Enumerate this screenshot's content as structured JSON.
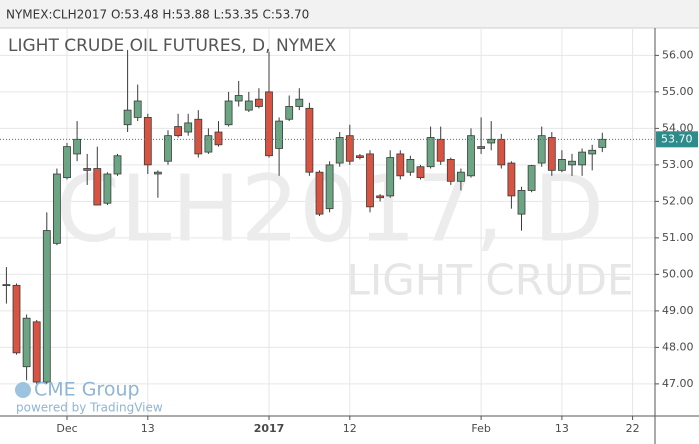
{
  "header": "NYMEX:CLH2017 O:53.48 H:53.88 L:53.35 C:53.70",
  "watermark": {
    "symbol": "CLH2017, D",
    "name": "LIGHT CRUDE"
  },
  "branding": {
    "logo": "CME Group",
    "powered": "powered by TradingView"
  },
  "chart_data": {
    "type": "candlestick",
    "title": "LIGHT CRUDE OIL FUTURES, D, NYMEX",
    "categories": [
      null,
      null,
      null,
      null,
      null,
      null,
      "Dec",
      null,
      null,
      null,
      null,
      null,
      null,
      null,
      "13",
      null,
      null,
      null,
      null,
      null,
      null,
      null,
      null,
      null,
      null,
      null,
      "2017",
      null,
      null,
      null,
      null,
      null,
      null,
      null,
      "12",
      null,
      null,
      null,
      null,
      null,
      null,
      null,
      null,
      null,
      null,
      null,
      null,
      "Feb",
      null,
      null,
      null,
      null,
      null,
      null,
      null,
      "13",
      null,
      null,
      null,
      null,
      null,
      null,
      "22"
    ],
    "open": [
      49.7,
      49.7,
      47.47,
      48.7,
      47.05,
      50.85,
      52.65,
      53.3,
      52.9,
      52.9,
      51.95,
      52.75,
      54.1,
      54.3,
      54.3,
      52.75,
      53.1,
      54.05,
      53.9,
      54.25,
      53.35,
      53.9,
      54.1,
      54.75,
      54.5,
      54.8,
      55.0,
      53.45,
      54.25,
      54.6,
      54.55,
      52.8,
      51.8,
      53.05,
      53.8,
      53.25,
      53.3,
      52.15,
      52.15,
      53.3,
      52.8,
      52.95,
      52.95,
      53.7,
      53.15,
      52.55,
      52.7,
      53.5,
      53.6,
      53.7,
      53.05,
      51.65,
      52.3,
      53.05,
      53.75,
      52.85,
      53.0,
      53.0,
      53.3,
      53.48,
      null,
      null,
      null
    ],
    "high": [
      50.2,
      49.75,
      48.9,
      48.75,
      51.7,
      52.9,
      53.6,
      54.2,
      53.3,
      53.5,
      52.8,
      53.3,
      56.15,
      55.2,
      54.4,
      52.85,
      53.95,
      54.4,
      54.4,
      54.5,
      54.0,
      54.2,
      55.0,
      55.3,
      55.0,
      55.1,
      56.1,
      54.3,
      54.9,
      55.1,
      54.7,
      52.85,
      53.1,
      53.9,
      54.1,
      53.3,
      53.4,
      52.2,
      53.4,
      53.4,
      53.25,
      53.0,
      54.05,
      54.05,
      53.2,
      52.9,
      54.0,
      54.3,
      54.2,
      53.85,
      53.1,
      52.4,
      53.0,
      54.05,
      53.9,
      53.4,
      53.3,
      53.45,
      53.55,
      53.88,
      null,
      null,
      null
    ],
    "low": [
      49.2,
      47.8,
      47.1,
      47.0,
      47.0,
      50.8,
      52.6,
      53.1,
      52.45,
      51.9,
      51.9,
      52.7,
      53.9,
      54.2,
      52.75,
      52.1,
      53.0,
      53.75,
      53.8,
      53.2,
      53.3,
      53.5,
      54.05,
      54.6,
      54.45,
      54.55,
      53.2,
      52.7,
      54.2,
      54.5,
      52.7,
      51.6,
      51.7,
      52.95,
      53.0,
      53.15,
      51.7,
      52.0,
      52.1,
      52.6,
      52.7,
      52.6,
      52.9,
      53.0,
      52.45,
      52.3,
      52.65,
      53.3,
      53.4,
      52.9,
      51.8,
      51.2,
      52.25,
      52.95,
      52.7,
      52.8,
      52.7,
      52.7,
      52.85,
      53.35,
      null,
      null,
      null
    ],
    "close": [
      49.72,
      47.85,
      48.8,
      47.05,
      51.2,
      52.75,
      53.5,
      53.7,
      52.85,
      51.9,
      52.75,
      53.25,
      54.5,
      54.75,
      53.0,
      52.8,
      53.8,
      53.8,
      54.15,
      53.3,
      53.8,
      53.55,
      54.75,
      54.9,
      54.75,
      54.6,
      53.25,
      54.2,
      54.6,
      54.8,
      52.8,
      51.65,
      53.0,
      53.75,
      53.1,
      53.2,
      51.85,
      52.1,
      53.2,
      52.7,
      53.15,
      52.65,
      53.75,
      53.1,
      52.55,
      52.8,
      53.8,
      53.45,
      53.7,
      53.0,
      52.15,
      52.3,
      52.98,
      53.8,
      52.85,
      53.15,
      53.1,
      53.35,
      53.4,
      53.7,
      null,
      null,
      null
    ],
    "up_color": "#6ba583",
    "down_color": "#d75442",
    "wick_color": "#3b3b3b",
    "ylim": [
      46.12,
      56.75
    ],
    "yticks": [
      {
        "value": 47,
        "label": "47.00"
      },
      {
        "value": 48,
        "label": "48.00"
      },
      {
        "value": 49,
        "label": "49.00"
      },
      {
        "value": 50,
        "label": "50.00"
      },
      {
        "value": 51,
        "label": "51.00"
      },
      {
        "value": 52,
        "label": "52.00"
      },
      {
        "value": 53,
        "label": "53.00"
      },
      {
        "value": 54,
        "label": "54.00"
      },
      {
        "value": 55,
        "label": "55.00"
      },
      {
        "value": 56,
        "label": "56.00"
      }
    ],
    "last_price": {
      "value": 53.7,
      "label": "53.70"
    },
    "last_price_color": "#2e8b8b",
    "grid": true
  }
}
